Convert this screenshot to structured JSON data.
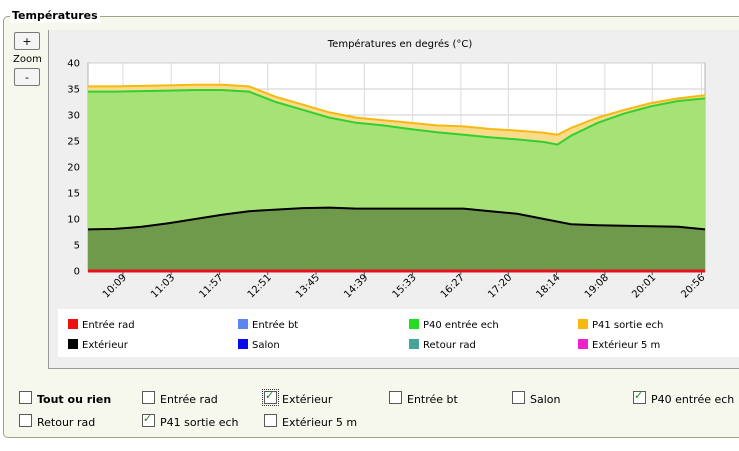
{
  "panel": {
    "title": "Températures"
  },
  "zoom": {
    "plus": "+",
    "minus": "-",
    "label": "Zoom"
  },
  "chart_data": {
    "type": "area",
    "title": "Températures en degrés (°C)",
    "ylim": [
      0,
      40
    ],
    "yticks": [
      0,
      5,
      10,
      15,
      20,
      25,
      30,
      35,
      40
    ],
    "x_ticks": [
      "10:09",
      "11:03",
      "11:57",
      "12:51",
      "13:45",
      "14:39",
      "15:33",
      "16:27",
      "17:20",
      "18:14",
      "19:08",
      "20:01",
      "20:56"
    ],
    "x": [
      "09:30",
      "10:00",
      "10:30",
      "11:00",
      "11:30",
      "12:00",
      "12:30",
      "13:00",
      "13:30",
      "14:00",
      "14:30",
      "15:00",
      "15:30",
      "16:00",
      "16:30",
      "17:00",
      "17:30",
      "18:00",
      "18:15",
      "18:30",
      "19:00",
      "19:30",
      "20:00",
      "20:30",
      "21:00"
    ],
    "series": [
      {
        "name": "P41 sortie ech",
        "color": "#f5b90f",
        "values": [
          35.5,
          35.5,
          35.6,
          35.7,
          35.8,
          35.8,
          35.5,
          33.5,
          32,
          30.5,
          29.5,
          29,
          28.5,
          28,
          27.8,
          27.3,
          27,
          26.6,
          26.2,
          27.5,
          29.5,
          31,
          32.3,
          33.2,
          33.8
        ]
      },
      {
        "name": "P40 entrée ech",
        "color": "#30d030",
        "values": [
          34.5,
          34.5,
          34.6,
          34.7,
          34.8,
          34.8,
          34.5,
          32.5,
          31,
          29.5,
          28.5,
          28,
          27.3,
          26.7,
          26.2,
          25.7,
          25.3,
          24.8,
          24.3,
          26,
          28.5,
          30.3,
          31.7,
          32.7,
          33.2
        ]
      },
      {
        "name": "Extérieur",
        "color": "#000000",
        "values": [
          8,
          8.1,
          8.5,
          9.2,
          10,
          10.8,
          11.5,
          11.8,
          12.1,
          12.2,
          12,
          12,
          12,
          12,
          12,
          11.5,
          11,
          10,
          9.5,
          9,
          8.8,
          8.7,
          8.6,
          8.5,
          8
        ]
      },
      {
        "name": "Entrée rad",
        "color": "#e8121d",
        "values": [
          0,
          0,
          0,
          0,
          0,
          0,
          0,
          0,
          0,
          0,
          0,
          0,
          0,
          0,
          0,
          0,
          0,
          0,
          0,
          0,
          0,
          0,
          0,
          0,
          0
        ]
      }
    ],
    "legend": [
      {
        "name": "Entrée rad",
        "color": "#ee1111"
      },
      {
        "name": "Entrée bt",
        "color": "#5b86f0"
      },
      {
        "name": "P40 entrée ech",
        "color": "#22dd22"
      },
      {
        "name": "P41 sortie ech",
        "color": "#f5b90f"
      },
      {
        "name": "Extérieur",
        "color": "#000000"
      },
      {
        "name": "Salon",
        "color": "#0a0aee"
      },
      {
        "name": "Retour rad",
        "color": "#46a39a"
      },
      {
        "name": "Extérieur 5 m",
        "color": "#ee22cc"
      }
    ]
  },
  "checkboxes": [
    {
      "label": "Tout ou rien",
      "checked": false,
      "bold": true
    },
    {
      "label": "Entrée rad",
      "checked": false
    },
    {
      "label": "Extérieur",
      "checked": true,
      "focused": true
    },
    {
      "label": "Entrée bt",
      "checked": false
    },
    {
      "label": "Salon",
      "checked": false
    },
    {
      "label": "P40 entrée ech",
      "checked": true
    },
    {
      "label": "Retour rad",
      "checked": false
    },
    {
      "label": "P41 sortie ech",
      "checked": true
    },
    {
      "label": "Extérieur 5 m",
      "checked": false
    }
  ]
}
